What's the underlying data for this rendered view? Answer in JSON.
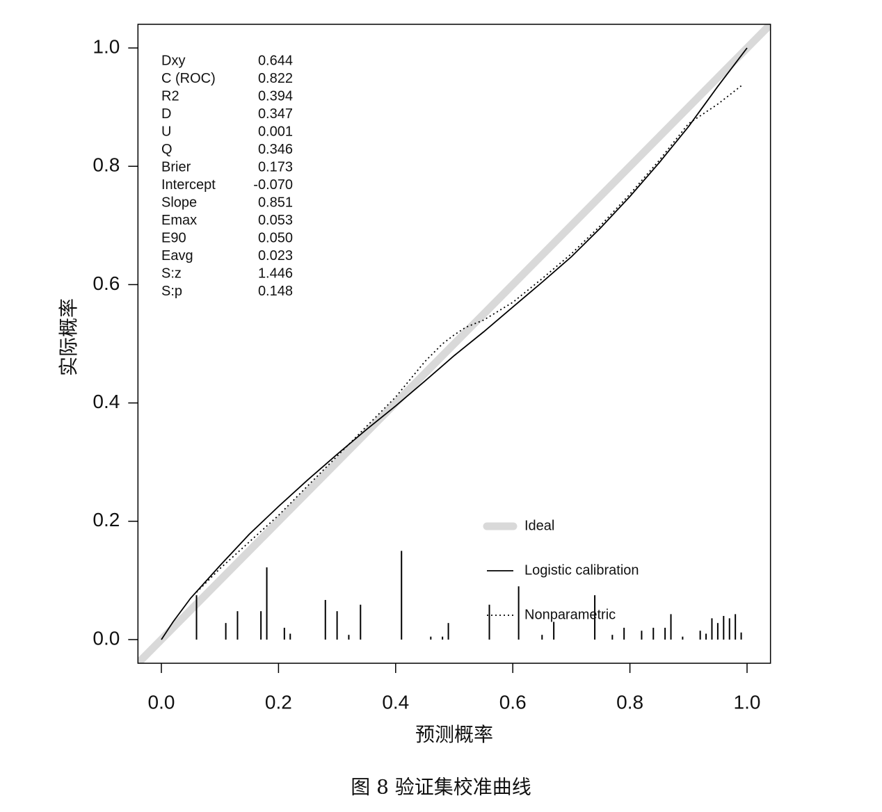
{
  "chart_data": {
    "type": "line",
    "xlabel": "预测概率",
    "ylabel": "实际概率",
    "caption": "图 8  验证集校准曲线",
    "xlim": [
      -0.04,
      1.04
    ],
    "ylim": [
      -0.04,
      1.04
    ],
    "x_ticks": [
      0.0,
      0.2,
      0.4,
      0.6,
      0.8,
      1.0
    ],
    "y_ticks": [
      0.0,
      0.2,
      0.4,
      0.6,
      0.8,
      1.0
    ],
    "x_tick_labels": [
      "0.0",
      "0.2",
      "0.4",
      "0.6",
      "0.8",
      "1.0"
    ],
    "y_tick_labels": [
      "0.0",
      "0.2",
      "0.4",
      "0.6",
      "0.8",
      "1.0"
    ],
    "grid": false,
    "legend_position": "bottom-right",
    "stats": [
      {
        "name": "Dxy",
        "value": "0.644"
      },
      {
        "name": "C (ROC)",
        "value": "0.822"
      },
      {
        "name": "R2",
        "value": "0.394"
      },
      {
        "name": "D",
        "value": "0.347"
      },
      {
        "name": "U",
        "value": "0.001"
      },
      {
        "name": "Q",
        "value": "0.346"
      },
      {
        "name": "Brier",
        "value": "0.173"
      },
      {
        "name": "Intercept",
        "value": "-0.070"
      },
      {
        "name": "Slope",
        "value": "0.851"
      },
      {
        "name": "Emax",
        "value": "0.053"
      },
      {
        "name": "E90",
        "value": "0.050"
      },
      {
        "name": "Eavg",
        "value": "0.023"
      },
      {
        "name": "S:z",
        "value": "1.446"
      },
      {
        "name": "S:p",
        "value": "0.148"
      }
    ],
    "series": [
      {
        "name": "Ideal",
        "style": "thick-gray",
        "color": "#d9d9d9",
        "x": [
          -0.04,
          1.04
        ],
        "y": [
          -0.04,
          1.04
        ]
      },
      {
        "name": "Logistic calibration",
        "style": "solid",
        "color": "#000000",
        "x": [
          0.0,
          0.02,
          0.05,
          0.1,
          0.15,
          0.2,
          0.25,
          0.3,
          0.35,
          0.4,
          0.45,
          0.5,
          0.55,
          0.6,
          0.65,
          0.7,
          0.75,
          0.8,
          0.85,
          0.9,
          0.95,
          0.98,
          1.0
        ],
        "y": [
          0.0,
          0.03,
          0.07,
          0.125,
          0.178,
          0.225,
          0.27,
          0.313,
          0.355,
          0.395,
          0.437,
          0.48,
          0.52,
          0.562,
          0.604,
          0.647,
          0.696,
          0.749,
          0.806,
          0.867,
          0.935,
          0.974,
          1.0
        ]
      },
      {
        "name": "Nonparametric",
        "style": "dotted",
        "color": "#000000",
        "x": [
          0.06,
          0.1,
          0.15,
          0.2,
          0.25,
          0.3,
          0.35,
          0.4,
          0.45,
          0.48,
          0.5,
          0.52,
          0.55,
          0.6,
          0.65,
          0.7,
          0.75,
          0.8,
          0.85,
          0.9,
          0.95,
          0.99
        ],
        "y": [
          0.08,
          0.12,
          0.165,
          0.21,
          0.26,
          0.31,
          0.36,
          0.41,
          0.47,
          0.5,
          0.515,
          0.528,
          0.54,
          0.57,
          0.61,
          0.652,
          0.7,
          0.753,
          0.81,
          0.872,
          0.905,
          0.936
        ]
      }
    ],
    "rug": [
      {
        "x": 0.06,
        "h": 0.075
      },
      {
        "x": 0.11,
        "h": 0.028
      },
      {
        "x": 0.13,
        "h": 0.048
      },
      {
        "x": 0.17,
        "h": 0.048
      },
      {
        "x": 0.18,
        "h": 0.122
      },
      {
        "x": 0.21,
        "h": 0.02
      },
      {
        "x": 0.22,
        "h": 0.01
      },
      {
        "x": 0.28,
        "h": 0.067
      },
      {
        "x": 0.3,
        "h": 0.048
      },
      {
        "x": 0.32,
        "h": 0.008
      },
      {
        "x": 0.34,
        "h": 0.059
      },
      {
        "x": 0.41,
        "h": 0.15
      },
      {
        "x": 0.46,
        "h": 0.005
      },
      {
        "x": 0.48,
        "h": 0.005
      },
      {
        "x": 0.49,
        "h": 0.028
      },
      {
        "x": 0.56,
        "h": 0.059
      },
      {
        "x": 0.61,
        "h": 0.09
      },
      {
        "x": 0.65,
        "h": 0.008
      },
      {
        "x": 0.67,
        "h": 0.03
      },
      {
        "x": 0.74,
        "h": 0.075
      },
      {
        "x": 0.77,
        "h": 0.008
      },
      {
        "x": 0.79,
        "h": 0.02
      },
      {
        "x": 0.82,
        "h": 0.015
      },
      {
        "x": 0.84,
        "h": 0.02
      },
      {
        "x": 0.86,
        "h": 0.02
      },
      {
        "x": 0.87,
        "h": 0.043
      },
      {
        "x": 0.89,
        "h": 0.005
      },
      {
        "x": 0.92,
        "h": 0.015
      },
      {
        "x": 0.93,
        "h": 0.01
      },
      {
        "x": 0.94,
        "h": 0.036
      },
      {
        "x": 0.95,
        "h": 0.028
      },
      {
        "x": 0.96,
        "h": 0.04
      },
      {
        "x": 0.97,
        "h": 0.036
      },
      {
        "x": 0.98,
        "h": 0.043
      },
      {
        "x": 0.99,
        "h": 0.012
      }
    ]
  }
}
